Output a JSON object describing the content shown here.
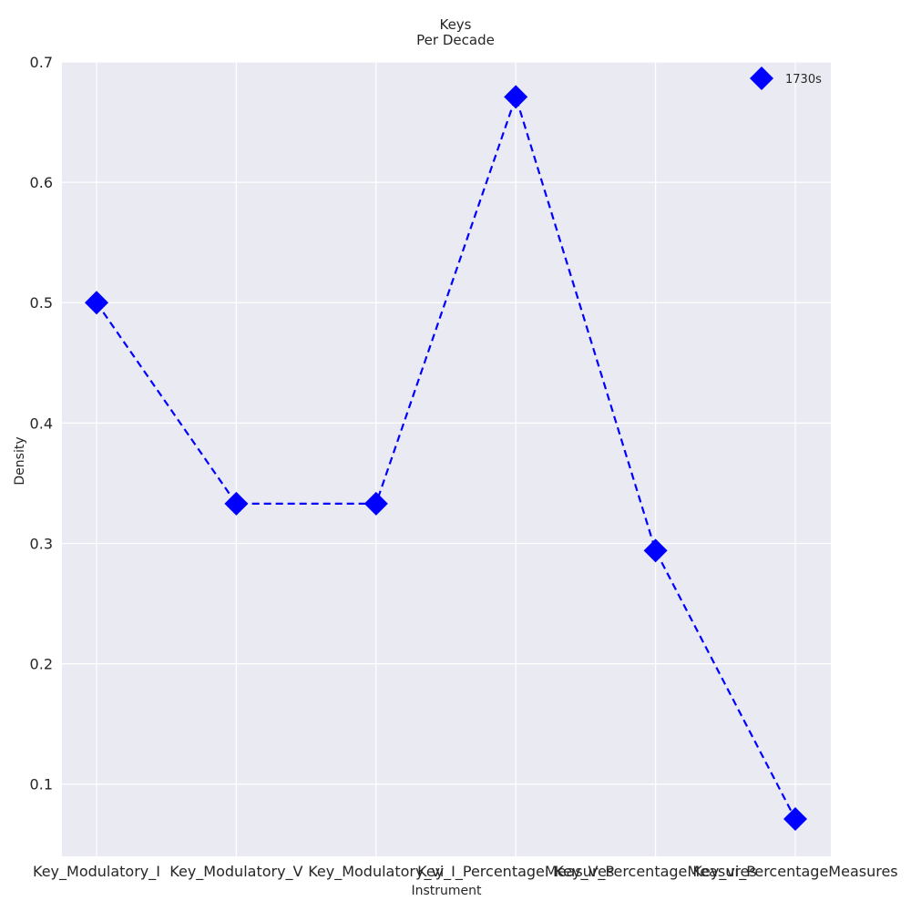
{
  "chart_data": {
    "type": "line",
    "title": "Keys",
    "subtitle": "Per Decade",
    "xlabel": "Instrument",
    "ylabel": "Density",
    "categories": [
      "Key_Modulatory_I",
      "Key_Modulatory_V",
      "Key_Modulatory_vi",
      "Key_I_PercentageMeasures",
      "Key_V_PercentageMeasures",
      "Key_vi_PercentageMeasures"
    ],
    "series": [
      {
        "name": "1730s",
        "values": [
          0.5,
          0.333,
          0.333,
          0.671,
          0.294,
          0.071
        ],
        "color": "#0000ff",
        "marker": "diamond",
        "line_style": "dashed"
      }
    ],
    "ylim": [
      0.04,
      0.7
    ],
    "yticks": [
      0.1,
      0.2,
      0.3,
      0.4,
      0.5,
      0.6,
      0.7
    ],
    "ytick_labels": [
      "0.1",
      "0.2",
      "0.3",
      "0.4",
      "0.5",
      "0.6",
      "0.7"
    ],
    "grid": true,
    "legend_position": "top-right",
    "background_color": "#eaeaf2",
    "grid_color": "#ffffff"
  }
}
